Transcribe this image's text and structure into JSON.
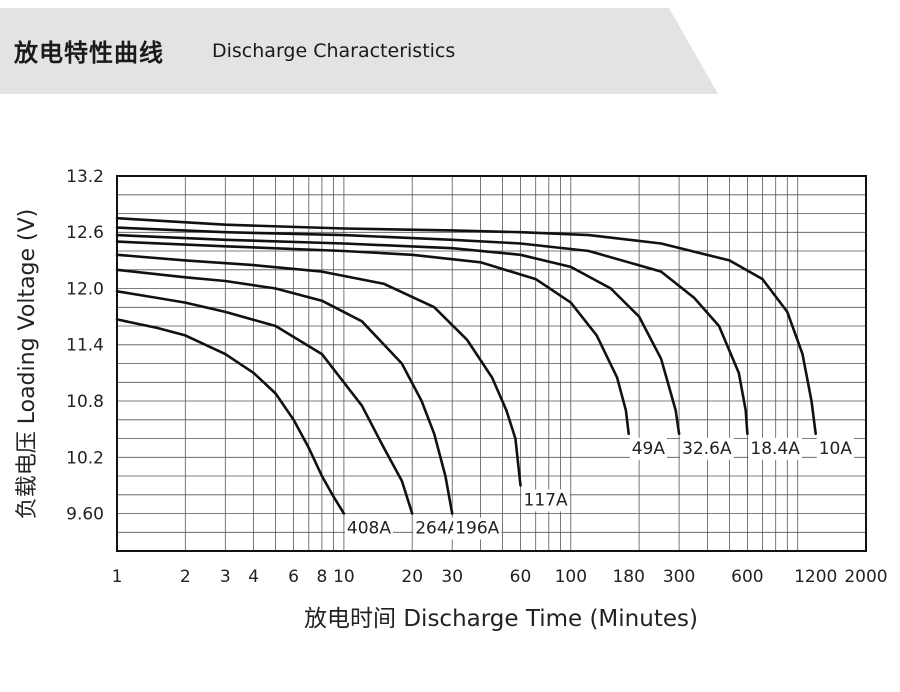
{
  "header": {
    "title_cn": "放电特性曲线",
    "title_en": "Discharge Characteristics"
  },
  "chart_data": {
    "type": "line",
    "title": "",
    "xlabel": "放电时间 Discharge Time (Minutes)",
    "ylabel": "负载电压 Loading Voltage (V)",
    "x_scale": "log",
    "xlim": [
      1,
      2000
    ],
    "ylim": [
      9.2,
      13.2
    ],
    "x_ticks": [
      1,
      2,
      3,
      4,
      6,
      8,
      10,
      20,
      30,
      60,
      100,
      180,
      300,
      600,
      1200,
      2000
    ],
    "y_ticks": [
      13.2,
      12.6,
      12.0,
      11.4,
      10.8,
      10.2,
      9.6
    ],
    "y_tick_labels": [
      "13.2",
      "12.6",
      "12.0",
      "11.4",
      "10.8",
      "10.2",
      "9.60"
    ],
    "grid": true,
    "line_color": "#111111",
    "series": [
      {
        "name": "408A",
        "x": [
          1,
          1.5,
          2,
          3,
          4,
          5,
          6,
          7,
          8,
          9,
          10
        ],
        "y": [
          11.67,
          11.58,
          11.5,
          11.3,
          11.1,
          10.88,
          10.6,
          10.3,
          10.0,
          9.78,
          9.6
        ]
      },
      {
        "name": "264A",
        "x": [
          1,
          1.5,
          2,
          3,
          5,
          8,
          12,
          15,
          18,
          20
        ],
        "y": [
          11.97,
          11.9,
          11.85,
          11.75,
          11.6,
          11.3,
          10.75,
          10.3,
          9.95,
          9.6
        ]
      },
      {
        "name": "196A",
        "x": [
          1,
          2,
          3,
          5,
          8,
          12,
          18,
          22,
          25,
          28,
          30
        ],
        "y": [
          12.2,
          12.12,
          12.08,
          12.0,
          11.87,
          11.65,
          11.2,
          10.8,
          10.45,
          10.0,
          9.6
        ]
      },
      {
        "name": "117A",
        "x": [
          1,
          2,
          4,
          8,
          15,
          25,
          35,
          45,
          52,
          57,
          60
        ],
        "y": [
          12.36,
          12.3,
          12.25,
          12.18,
          12.05,
          11.8,
          11.45,
          11.05,
          10.7,
          10.4,
          9.9
        ]
      },
      {
        "name": "49A",
        "x": [
          1,
          3,
          10,
          20,
          40,
          70,
          100,
          130,
          160,
          175,
          180
        ],
        "y": [
          12.5,
          12.45,
          12.4,
          12.36,
          12.28,
          12.1,
          11.85,
          11.5,
          11.05,
          10.7,
          10.45
        ]
      },
      {
        "name": "32.6A",
        "x": [
          1,
          3,
          10,
          30,
          60,
          100,
          150,
          200,
          250,
          290,
          300
        ],
        "y": [
          12.57,
          12.52,
          12.48,
          12.43,
          12.36,
          12.23,
          12.0,
          11.7,
          11.25,
          10.7,
          10.45
        ]
      },
      {
        "name": "18.4A",
        "x": [
          1,
          3,
          10,
          30,
          60,
          120,
          250,
          350,
          450,
          550,
          590,
          600
        ],
        "y": [
          12.65,
          12.6,
          12.57,
          12.52,
          12.48,
          12.4,
          12.18,
          11.9,
          11.6,
          11.1,
          10.7,
          10.45
        ]
      },
      {
        "name": "10A",
        "x": [
          1,
          3,
          10,
          30,
          60,
          120,
          250,
          500,
          700,
          900,
          1050,
          1150,
          1200
        ],
        "y": [
          12.75,
          12.68,
          12.64,
          12.62,
          12.6,
          12.57,
          12.48,
          12.3,
          12.1,
          11.75,
          11.3,
          10.8,
          10.45
        ]
      }
    ]
  }
}
